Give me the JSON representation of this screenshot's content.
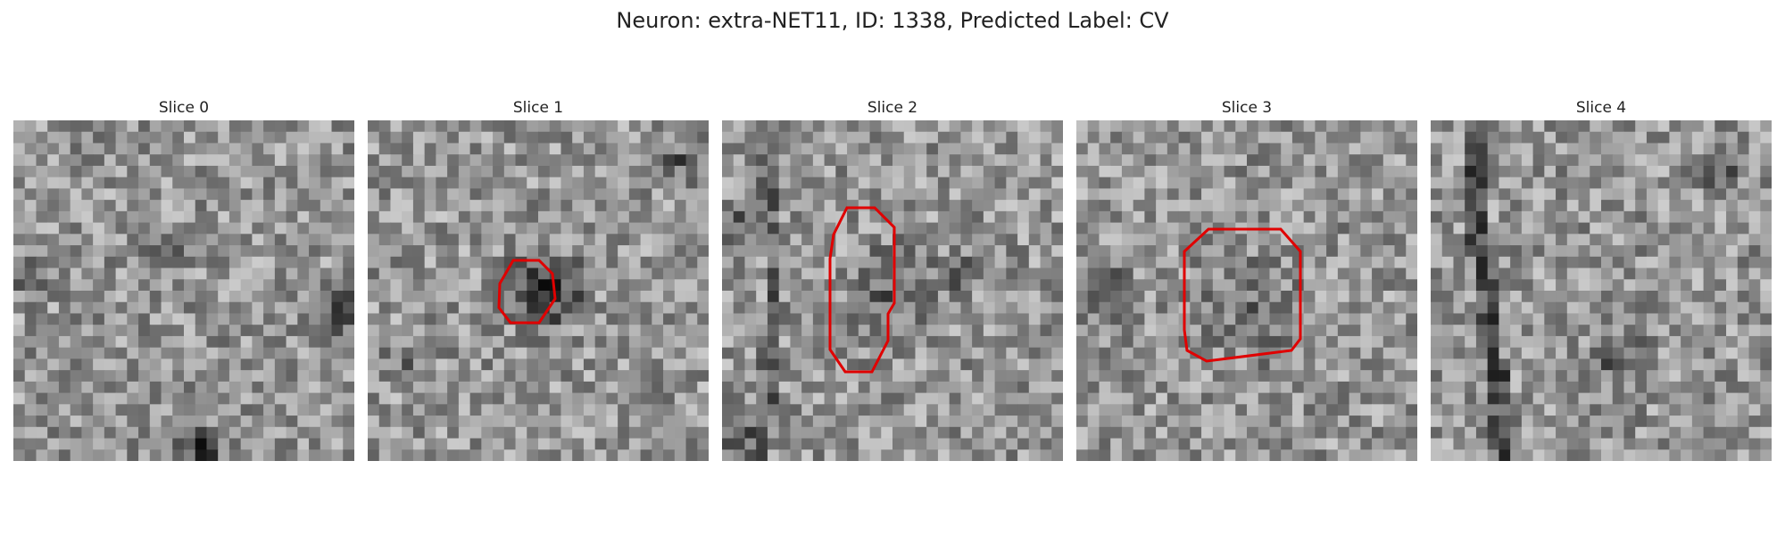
{
  "figure": {
    "title": "Neuron: extra-NET11, ID: 1338, Predicted Label: CV"
  },
  "colors": {
    "outline": "#e00000",
    "background": "#ffffff"
  },
  "panels": [
    {
      "title": "Slice 0",
      "has_outline": false
    },
    {
      "title": "Slice 1",
      "has_outline": true
    },
    {
      "title": "Slice 2",
      "has_outline": true
    },
    {
      "title": "Slice 3",
      "has_outline": true
    },
    {
      "title": "Slice 4",
      "has_outline": false
    }
  ]
}
